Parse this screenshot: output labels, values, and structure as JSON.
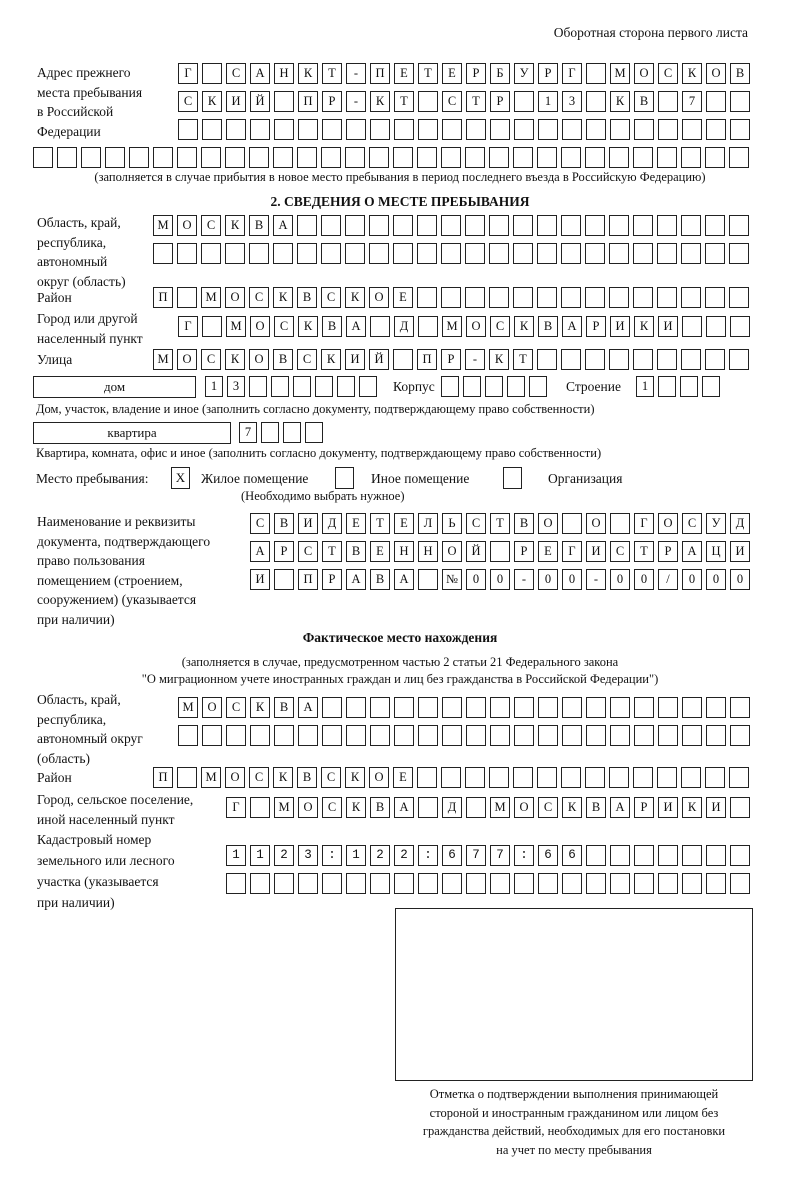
{
  "header": "Оборотная сторона первого листа",
  "previous_address": {
    "label": [
      "Адрес прежнего",
      "места пребывания",
      "в Российской",
      "Федерации"
    ],
    "rows": [
      "Г САНКТ-ПЕТЕРБУРГ МОСКОВ",
      "СКИЙ ПР-КТ СТР 13 КВ 7",
      "",
      ""
    ],
    "note": "(заполняется в случае прибытия в новое место пребывания в период последнего въезда в Российскую Федерацию)"
  },
  "section2": {
    "title": "2. СВЕДЕНИЯ О МЕСТЕ ПРЕБЫВАНИЯ",
    "region_label": [
      "Область, край,",
      "республика,",
      "автономный",
      "округ (область)"
    ],
    "region_rows": [
      "МОСКВА",
      ""
    ],
    "district_label": "Район",
    "district_row": "П МОСКВСКОЕ",
    "city_label": [
      "Город или другой",
      "населенный пункт"
    ],
    "city_row": "Г МОСКВА Д МОСКВАРИКИ",
    "street_label": "Улица",
    "street_row": "МОСКОВСКИЙ ПР-КТ",
    "house_type": "дом",
    "house_row": "13",
    "korpus_label": "Корпус",
    "korpus_row": "",
    "building_label": "Строение",
    "building_row": "1",
    "house_note": "Дом, участок, владение и иное (заполнить согласно документу, подтверждающему право собственности)",
    "apartment_type": "квартира",
    "apartment_row": "7",
    "apartment_note": "Квартира, комната, офис и иное (заполнить согласно документу, подтверждающему право собственности)",
    "stay_place_label": "Место пребывания:",
    "stay_options": [
      {
        "label": "Жилое помещение",
        "checked": true,
        "mark": "X"
      },
      {
        "label": "Иное помещение",
        "checked": false,
        "mark": ""
      },
      {
        "label": "Организация",
        "checked": false,
        "mark": ""
      }
    ],
    "stay_note": "(Необходимо выбрать нужное)",
    "document_label": [
      "Наименование и реквизиты",
      "документа, подтверждающего",
      "право пользования",
      "помещением (строением,",
      "сооружением) (указывается",
      "при наличии)"
    ],
    "document_rows": [
      "СВИДЕТЕЛЬСТВО О ГОСУД",
      "АРСТВЕННОЙ РЕГИСТРАЦИ",
      "И ПРАВА №00-00-00/000"
    ]
  },
  "actual": {
    "title": "Фактическое место нахождения",
    "note": [
      "(заполняется в случае, предусмотренном частью 2 статьи 21 Федерального закона",
      "\"О миграционном учете иностранных граждан и лиц без гражданства в Российской Федерации\")"
    ],
    "region_label": [
      "Область, край,",
      "республика,",
      "автономный округ",
      "(область)"
    ],
    "region_rows": [
      "МОСКВА",
      ""
    ],
    "district_label": "Район",
    "district_row": "П МОСКВСКОЕ",
    "city_label": [
      "Город, сельское поселение,",
      "иной населенный пункт"
    ],
    "city_row": "Г МОСКВА Д МОСКВАРИКИ",
    "cadastral_label": [
      "Кадастровый номер",
      "земельного или лесного",
      "участка (указывается",
      "при наличии)"
    ],
    "cadastral_rows": [
      "1123:122:677:66",
      ""
    ]
  },
  "confirmation": {
    "caption": [
      "Отметка о подтверждении выполнения принимающей",
      "стороной и иностранным гражданином или лицом без",
      "гражданства действий, необходимых для его постановки",
      "на учет по месту пребывания"
    ]
  }
}
